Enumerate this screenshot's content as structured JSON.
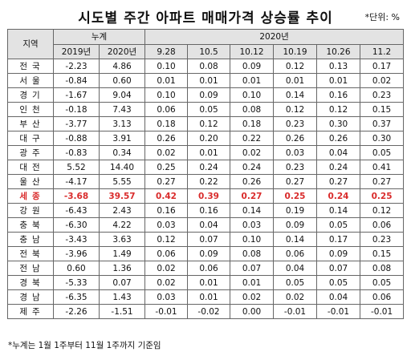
{
  "title": "시도별 주간 아파트 매매가격 상승률 추이",
  "unit": "*단위: %",
  "table": {
    "col_region": "지역",
    "col_cumulative": "누계",
    "col_weekly": "2020년",
    "years": [
      "2019년",
      "2020년"
    ],
    "weeks": [
      "9.28",
      "10.5",
      "10.12",
      "10.19",
      "10.26",
      "11.2"
    ],
    "highlight_color": "#d92b2b",
    "rows": [
      {
        "region": "전국",
        "cum": [
          "-2.23",
          "4.86"
        ],
        "weekly": [
          "0.10",
          "0.08",
          "0.09",
          "0.12",
          "0.13",
          "0.17"
        ]
      },
      {
        "region": "서울",
        "cum": [
          "-0.84",
          "0.60"
        ],
        "weekly": [
          "0.01",
          "0.01",
          "0.01",
          "0.01",
          "0.01",
          "0.02"
        ]
      },
      {
        "region": "경기",
        "cum": [
          "-1.67",
          "9.04"
        ],
        "weekly": [
          "0.10",
          "0.09",
          "0.10",
          "0.14",
          "0.16",
          "0.23"
        ]
      },
      {
        "region": "인천",
        "cum": [
          "-0.18",
          "7.43"
        ],
        "weekly": [
          "0.06",
          "0.05",
          "0.08",
          "0.12",
          "0.12",
          "0.15"
        ]
      },
      {
        "region": "부산",
        "cum": [
          "-3.77",
          "3.13"
        ],
        "weekly": [
          "0.18",
          "0.12",
          "0.18",
          "0.23",
          "0.30",
          "0.37"
        ]
      },
      {
        "region": "대구",
        "cum": [
          "-0.88",
          "3.91"
        ],
        "weekly": [
          "0.26",
          "0.20",
          "0.22",
          "0.26",
          "0.26",
          "0.30"
        ]
      },
      {
        "region": "광주",
        "cum": [
          "-0.83",
          "0.34"
        ],
        "weekly": [
          "0.02",
          "0.01",
          "0.02",
          "0.03",
          "0.04",
          "0.05"
        ]
      },
      {
        "region": "대전",
        "cum": [
          "5.52",
          "14.40"
        ],
        "weekly": [
          "0.25",
          "0.24",
          "0.24",
          "0.23",
          "0.24",
          "0.41"
        ]
      },
      {
        "region": "울산",
        "cum": [
          "-4.17",
          "5.55"
        ],
        "weekly": [
          "0.27",
          "0.22",
          "0.26",
          "0.27",
          "0.27",
          "0.27"
        ]
      },
      {
        "region": "세종",
        "cum": [
          "-3.68",
          "39.57"
        ],
        "weekly": [
          "0.42",
          "0.39",
          "0.27",
          "0.25",
          "0.24",
          "0.25"
        ],
        "highlight": true
      },
      {
        "region": "강원",
        "cum": [
          "-6.43",
          "2.43"
        ],
        "weekly": [
          "0.16",
          "0.16",
          "0.14",
          "0.19",
          "0.14",
          "0.12"
        ]
      },
      {
        "region": "충북",
        "cum": [
          "-6.30",
          "4.22"
        ],
        "weekly": [
          "0.03",
          "0.04",
          "0.03",
          "0.09",
          "0.05",
          "0.06"
        ]
      },
      {
        "region": "충남",
        "cum": [
          "-3.43",
          "3.63"
        ],
        "weekly": [
          "0.12",
          "0.07",
          "0.10",
          "0.14",
          "0.17",
          "0.23"
        ]
      },
      {
        "region": "전북",
        "cum": [
          "-3.96",
          "1.49"
        ],
        "weekly": [
          "0.06",
          "0.09",
          "0.08",
          "0.06",
          "0.09",
          "0.15"
        ]
      },
      {
        "region": "전남",
        "cum": [
          "0.60",
          "1.36"
        ],
        "weekly": [
          "0.02",
          "0.06",
          "0.07",
          "0.04",
          "0.07",
          "0.08"
        ]
      },
      {
        "region": "경북",
        "cum": [
          "-5.33",
          "0.07"
        ],
        "weekly": [
          "0.02",
          "0.01",
          "0.01",
          "0.05",
          "0.05",
          "0.05"
        ]
      },
      {
        "region": "경남",
        "cum": [
          "-6.35",
          "1.43"
        ],
        "weekly": [
          "0.03",
          "0.01",
          "0.02",
          "0.02",
          "0.04",
          "0.06"
        ]
      },
      {
        "region": "제주",
        "cum": [
          "-2.26",
          "-1.51"
        ],
        "weekly": [
          "-0.01",
          "-0.02",
          "0.00",
          "-0.01",
          "-0.01",
          "-0.01"
        ]
      }
    ]
  },
  "footnote": "*누계는 1월 1주부터 11월 1주까지 기준임"
}
